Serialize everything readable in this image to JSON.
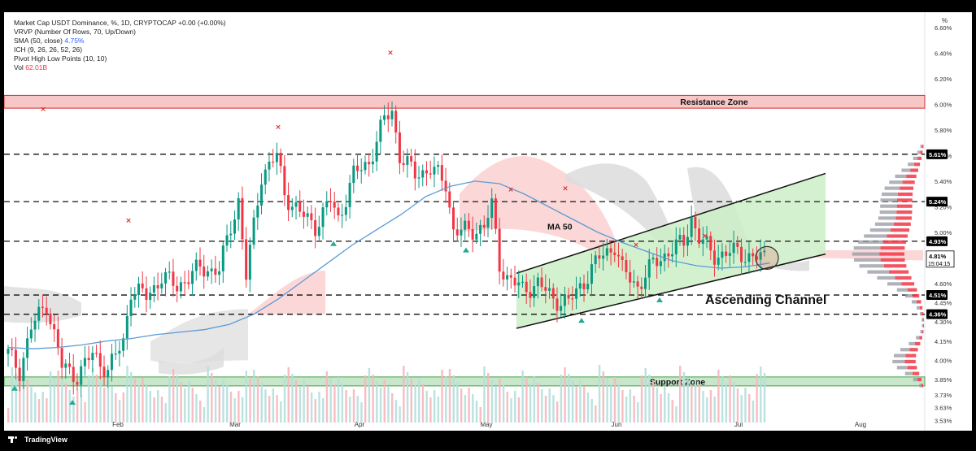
{
  "header": {
    "indicators": [
      {
        "text": "Market Cap USDT Dominance, %, 1D, CRYPTOCAP  +0.00 (+0.00%)",
        "value": ""
      },
      {
        "text": "VRVP (Number Of Rows, 70, Up/Down)",
        "value": ""
      },
      {
        "text": "SMA (50, close)",
        "value": "4.75%",
        "value_color": "blue"
      },
      {
        "text": "ICH (9, 26, 26, 52, 26)",
        "value": ""
      },
      {
        "text": "Pivot High Low Points (10, 10)",
        "value": ""
      },
      {
        "text": "Vol",
        "value": "62.01B",
        "value_color": "red"
      }
    ]
  },
  "footer": {
    "brand": "TradingView"
  },
  "colors": {
    "up": "#089981",
    "down": "#f23645",
    "sma": "#5b9bd5",
    "zone": "#f7c6c6",
    "zone_border": "#d32f2f",
    "support": "#c8e6c9",
    "support_border": "#43a047",
    "channel": "#cdeec7",
    "cloud_red": "#fbd0d0",
    "cloud_gray": "#dcdcdc"
  },
  "chart_data": {
    "type": "candlestick",
    "unit": "%",
    "ylim": [
      3.45,
      6.72
    ],
    "y_ticks": [
      6.6,
      6.4,
      6.2,
      6.0,
      5.8,
      5.6,
      5.4,
      5.2,
      5.0,
      4.8,
      4.6,
      4.45,
      4.3,
      4.15,
      4.0,
      3.85,
      3.73,
      3.63,
      3.53
    ],
    "axis_symbol": "%",
    "x_ticks": [
      "Feb",
      "Mar",
      "Apr",
      "May",
      "Jun",
      "Jul",
      "Aug"
    ],
    "level_labels": [
      {
        "value": 5.61,
        "label": "5.61%"
      },
      {
        "value": 5.24,
        "label": "5.24%"
      },
      {
        "value": 4.93,
        "label": "4.93%"
      },
      {
        "value": 4.51,
        "label": "4.51%"
      },
      {
        "value": 4.36,
        "label": "4.36%"
      }
    ],
    "last_price": {
      "label": "4.81%",
      "countdown": "15:04:15"
    },
    "zones": [
      {
        "name": "Resistance Zone",
        "from": 5.97,
        "to": 6.07
      },
      {
        "name": "Support Zone",
        "from": 3.8,
        "to": 3.87
      }
    ],
    "annotations": {
      "ma_label": "MA 50",
      "channel_label": "Ascending Channel"
    },
    "sma50": [
      [
        0,
        4.1
      ],
      [
        5,
        4.09
      ],
      [
        10,
        4.1
      ],
      [
        15,
        4.12
      ],
      [
        20,
        4.15
      ],
      [
        25,
        4.17
      ],
      [
        30,
        4.2
      ],
      [
        35,
        4.22
      ],
      [
        40,
        4.24
      ],
      [
        45,
        4.28
      ],
      [
        50,
        4.36
      ],
      [
        55,
        4.48
      ],
      [
        60,
        4.62
      ],
      [
        65,
        4.76
      ],
      [
        70,
        4.9
      ],
      [
        75,
        5.02
      ],
      [
        80,
        5.14
      ],
      [
        85,
        5.28
      ],
      [
        90,
        5.36
      ],
      [
        95,
        5.4
      ],
      [
        100,
        5.38
      ],
      [
        105,
        5.3
      ],
      [
        110,
        5.2
      ],
      [
        115,
        5.1
      ],
      [
        120,
        5.0
      ],
      [
        125,
        4.92
      ],
      [
        130,
        4.85
      ],
      [
        135,
        4.78
      ],
      [
        140,
        4.74
      ],
      [
        145,
        4.72
      ],
      [
        150,
        4.73
      ],
      [
        155,
        4.76
      ]
    ],
    "pivots": {
      "highs": [
        5.92,
        5.05,
        5.78,
        6.36,
        5.29,
        4.86,
        4.93,
        5.3
      ],
      "lows": [
        3.82,
        3.71,
        4.95,
        4.9,
        4.35,
        4.51
      ]
    }
  }
}
